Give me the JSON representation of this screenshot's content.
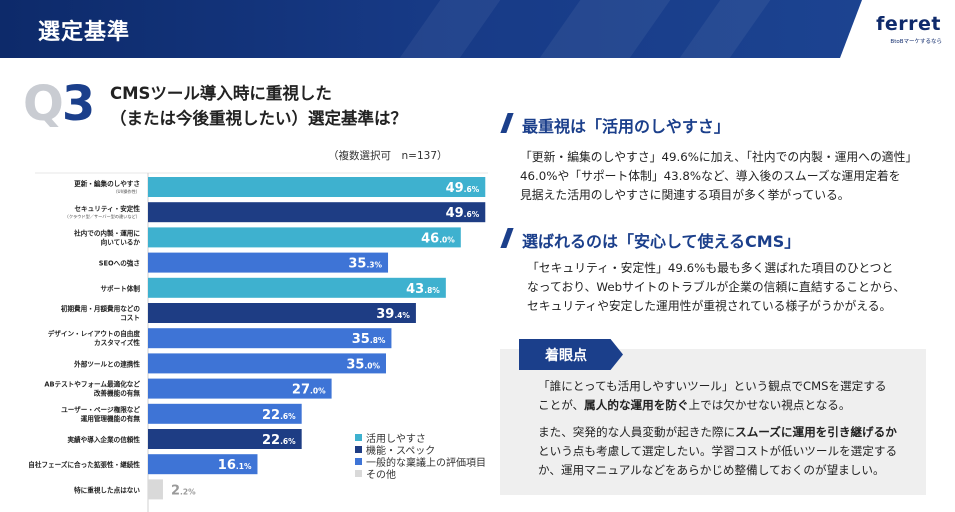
{
  "header": {
    "title": "選定基準",
    "logo_text": "ferret",
    "logo_subtext": "BtoBマーケするなら"
  },
  "question": {
    "label_q": "Q",
    "label_num": "3",
    "title_line1": "CMSツール導入時に重視した",
    "title_line2": "（または今後重視したい）選定基準は？"
  },
  "chart_note": "（複数選択可　n=137）",
  "chart_data": {
    "type": "bar",
    "orientation": "horizontal",
    "title": "CMSツール導入時に重視した（または今後重視したい）選定基準は？",
    "unit": "%",
    "xlim": [
      0,
      50
    ],
    "colors": {
      "usability": "#3eb1cf",
      "function": "#1e3d84",
      "general": "#3e74d6",
      "other": "#d9d9d9"
    },
    "bars": [
      {
        "label": "更新・編集のしやすさ",
        "sublabel": "（UI/操作性）",
        "int": "49",
        "dec": ".6%",
        "value": 49.6,
        "group": "usability"
      },
      {
        "label": "セキュリティ・安定性",
        "sublabel": "（クラウド型／サーバー型の違いなど）",
        "int": "49",
        "dec": ".6%",
        "value": 49.6,
        "group": "function"
      },
      {
        "label": "社内での内製・運用に",
        "label2": "向いているか",
        "int": "46",
        "dec": ".0%",
        "value": 46.0,
        "group": "usability"
      },
      {
        "label": "SEOへの強さ",
        "int": "35",
        "dec": ".3%",
        "value": 35.3,
        "group": "general"
      },
      {
        "label": "サポート体制",
        "int": "43",
        "dec": ".8%",
        "value": 43.8,
        "group": "usability"
      },
      {
        "label": "初期費用・月額費用などの",
        "label2": "コスト",
        "int": "39",
        "dec": ".4%",
        "value": 39.4,
        "group": "function"
      },
      {
        "label": "デザイン・レイアウトの自由度",
        "label2": "カスタマイズ性",
        "int": "35",
        "dec": ".8%",
        "value": 35.8,
        "group": "general"
      },
      {
        "label": "外部ツールとの連携性",
        "int": "35",
        "dec": ".0%",
        "value": 35.0,
        "group": "general"
      },
      {
        "label": "ABテストやフォーム最適化など",
        "label2": "改善機能の有無",
        "int": "27",
        "dec": ".0%",
        "value": 27.0,
        "group": "general"
      },
      {
        "label": "ユーザー・ページ権限など",
        "label2": "運用管理機能の有無",
        "int": "22",
        "dec": ".6%",
        "value": 22.6,
        "group": "general"
      },
      {
        "label": "実績や導入企業の信頼性",
        "int": "22",
        "dec": ".6%",
        "value": 22.6,
        "group": "function"
      },
      {
        "label": "自社フェーズに合った拡張性・継続性",
        "int": "16",
        "dec": ".1%",
        "value": 16.1,
        "group": "general"
      },
      {
        "label": "特に重視した点はない",
        "int": "2",
        "dec": ".2%",
        "value": 2.2,
        "group": "other"
      }
    ],
    "legend": [
      {
        "name": "活用しやすさ",
        "group": "usability"
      },
      {
        "name": "機能・スペック",
        "group": "function"
      },
      {
        "name": "一般的な稟議上の評価項目",
        "group": "general"
      },
      {
        "name": "その他",
        "group": "other"
      }
    ]
  },
  "section1": {
    "heading": "最重視は「活用のしやすさ」",
    "lines": [
      "「更新・編集のしやすさ」49.6%に加え、「社内での内製・運用への適性」",
      "46.0%や「サポート体制」43.8%など、導入後のスムーズな運用定着を",
      "見据えた活用のしやすさに関連する項目が多く挙がっている。"
    ]
  },
  "section2": {
    "heading": "選ばれるのは「安心して使えるCMS」",
    "lines": [
      "「セキュリティ・安定性」49.6%も最も多く選ばれた項目のひとつと",
      "なっており、Webサイトのトラブルが企業の信頼に直結することから、",
      "セキュリティや安定した運用性が重視されている様子がうかがえる。"
    ]
  },
  "point": {
    "tag": "着眼点",
    "p1_l1": "「誰にとっても活用しやすいツール」という観点でCMSを選定する",
    "p1_l2_a": "ことが、",
    "p1_l2_b": "属人的な運用を防ぐ",
    "p1_l2_c": "上では欠かせない視点となる。",
    "p2_l1_a": "また、突発的な人員変動が起きた際に",
    "p2_l1_b": "スムーズに運用を引き継げるか",
    "p2_l2": "という点も考慮して選定したい。学習コストが低いツールを選定する",
    "p2_l3": "か、運用マニュアルなどをあらかじめ整備しておくのが望ましい。"
  }
}
